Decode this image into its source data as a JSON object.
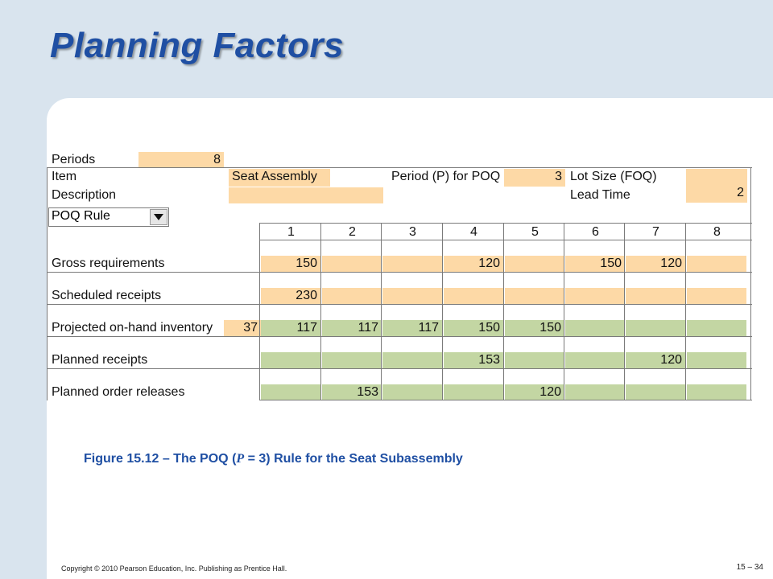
{
  "slide": {
    "title": "Planning Factors",
    "caption_pre": "Figure 15.12 – The POQ (",
    "caption_var": "P",
    "caption_post": " = 3) Rule for the Seat Subassembly",
    "copyright": "Copyright © 2010 Pearson Education, Inc. Publishing as Prentice Hall.",
    "page_number": "15 – 34"
  },
  "header": {
    "periods_label": "Periods",
    "periods_value": "8",
    "item_label": "Item",
    "item_value": "Seat Assembly",
    "description_label": "Description",
    "poq_period_label": "Period (P) for POQ",
    "poq_period_value": "3",
    "lot_size_label": "Lot Size (FOQ)",
    "lead_time_label": "Lead Time",
    "lead_time_value": "2",
    "rule_label": "POQ Rule"
  },
  "table": {
    "periods": [
      "1",
      "2",
      "3",
      "4",
      "5",
      "6",
      "7",
      "8"
    ],
    "gross_requirements": {
      "label": "Gross requirements",
      "values": [
        "150",
        "",
        "",
        "120",
        "",
        "150",
        "120",
        ""
      ]
    },
    "scheduled_receipts": {
      "label": "Scheduled receipts",
      "values": [
        "230",
        "",
        "",
        "",
        "",
        "",
        "",
        ""
      ]
    },
    "projected_on_hand": {
      "label": "Projected on-hand inventory",
      "initial": "37",
      "values": [
        "117",
        "117",
        "117",
        "150",
        "150",
        "",
        "",
        ""
      ]
    },
    "planned_receipts": {
      "label": "Planned receipts",
      "values": [
        "",
        "",
        "",
        "153",
        "",
        "",
        "120",
        ""
      ]
    },
    "planned_order_releases": {
      "label": "Planned order releases",
      "values": [
        "",
        "153",
        "",
        "",
        "120",
        "",
        "",
        ""
      ]
    }
  },
  "colors": {
    "input_orange": "#fdd9a6",
    "computed_green": "#c3d6a3",
    "title_blue": "#1f4fa3",
    "background": "#d9e4ee"
  }
}
